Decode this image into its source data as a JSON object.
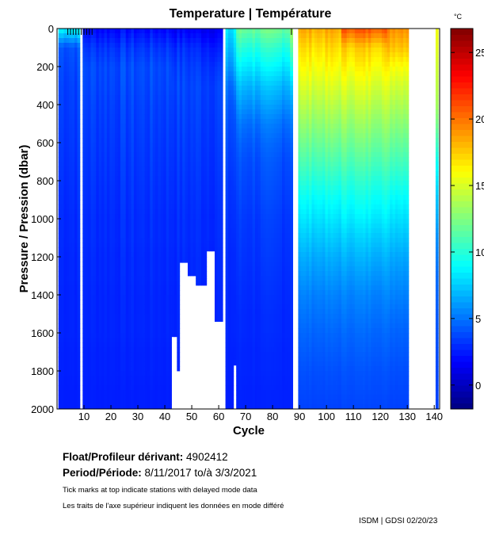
{
  "chart_data": {
    "type": "heatmap",
    "title": "Temperature | Température",
    "xlabel": "Cycle",
    "ylabel": "Pressure / Pression (dbar)",
    "xlim": [
      0,
      142
    ],
    "ylim": [
      2000,
      0
    ],
    "xticks": [
      10,
      20,
      30,
      40,
      50,
      60,
      70,
      80,
      90,
      100,
      110,
      120,
      130,
      140
    ],
    "yticks": [
      0,
      200,
      400,
      600,
      800,
      1000,
      1200,
      1400,
      1600,
      1800,
      2000
    ],
    "colorbar": {
      "label": "°C",
      "range": [
        -1.8,
        26.8
      ],
      "ticks": [
        0,
        5,
        10,
        15,
        20,
        25
      ],
      "colormap": "jet"
    },
    "pressure_levels": [
      0,
      100,
      200,
      300,
      400,
      500,
      600,
      700,
      800,
      900,
      1000,
      1100,
      1200,
      1300,
      1400,
      1500,
      1600,
      1700,
      1800,
      1900,
      2000
    ],
    "segments": [
      {
        "cycles": [
          1,
          8
        ],
        "max_pressure": 2000,
        "temps": [
          9.0,
          4.2,
          3.9,
          3.7,
          3.6,
          3.5,
          3.4,
          3.3,
          3.2,
          3.1,
          3.0,
          3.0,
          2.9,
          2.9,
          2.8,
          2.8,
          2.8,
          2.7,
          2.7,
          2.6,
          2.6
        ]
      },
      {
        "cycles": [
          10,
          42
        ],
        "max_pressure": 2000,
        "temps": [
          2.0,
          3.3,
          3.9,
          3.8,
          3.6,
          3.5,
          3.4,
          3.3,
          3.2,
          3.1,
          3.0,
          3.0,
          2.9,
          2.9,
          2.8,
          2.8,
          2.8,
          2.7,
          2.7,
          2.6,
          2.6
        ]
      },
      {
        "cycles": [
          43,
          44
        ],
        "max_pressure": 1620,
        "temps": [
          1.6,
          3.0,
          3.6,
          3.8,
          3.6,
          3.5,
          3.4,
          3.3,
          3.2,
          3.1,
          3.0,
          3.0,
          2.9,
          2.9,
          2.8,
          2.8,
          2.8,
          2.7,
          2.7,
          2.6,
          2.6
        ]
      },
      {
        "cycles": [
          45,
          45
        ],
        "max_pressure": 1800,
        "temps": [
          1.6,
          3.0,
          3.6,
          3.8,
          3.6,
          3.5,
          3.4,
          3.3,
          3.2,
          3.1,
          3.0,
          3.0,
          2.9,
          2.9,
          2.8,
          2.8,
          2.8,
          2.7,
          2.7,
          2.6,
          2.6
        ]
      },
      {
        "cycles": [
          46,
          48
        ],
        "max_pressure": 1230,
        "temps": [
          1.6,
          3.0,
          3.5,
          3.7,
          3.6,
          3.5,
          3.4,
          3.3,
          3.2,
          3.1,
          3.0,
          3.0,
          2.9,
          2.9,
          2.8,
          2.8,
          2.8,
          2.7,
          2.7,
          2.6,
          2.6
        ]
      },
      {
        "cycles": [
          49,
          51
        ],
        "max_pressure": 1300,
        "temps": [
          1.6,
          3.0,
          3.5,
          3.7,
          3.6,
          3.5,
          3.4,
          3.3,
          3.2,
          3.1,
          3.0,
          3.0,
          2.9,
          2.9,
          2.8,
          2.8,
          2.8,
          2.7,
          2.7,
          2.6,
          2.6
        ]
      },
      {
        "cycles": [
          52,
          55
        ],
        "max_pressure": 1350,
        "temps": [
          1.5,
          2.8,
          3.4,
          3.7,
          3.6,
          3.5,
          3.4,
          3.3,
          3.2,
          3.1,
          3.0,
          3.0,
          2.9,
          2.9,
          2.8,
          2.8,
          2.8,
          2.7,
          2.7,
          2.6,
          2.6
        ]
      },
      {
        "cycles": [
          56,
          58
        ],
        "max_pressure": 1170,
        "temps": [
          1.5,
          2.8,
          3.4,
          3.7,
          3.6,
          3.5,
          3.4,
          3.3,
          3.2,
          3.1,
          3.0,
          3.0,
          2.9,
          2.9,
          2.8,
          2.8,
          2.8,
          2.7,
          2.7,
          2.6,
          2.6
        ]
      },
      {
        "cycles": [
          59,
          61
        ],
        "max_pressure": 1540,
        "temps": [
          1.5,
          2.5,
          3.3,
          3.7,
          3.6,
          3.5,
          3.4,
          3.3,
          3.2,
          3.1,
          3.0,
          3.0,
          2.9,
          2.9,
          2.8,
          2.8,
          2.8,
          2.7,
          2.7,
          2.6,
          2.6
        ]
      },
      {
        "cycles": [
          63,
          65
        ],
        "max_pressure": 2000,
        "temps": [
          8.0,
          7.0,
          6.0,
          4.8,
          4.2,
          3.9,
          3.7,
          3.5,
          3.3,
          3.2,
          3.1,
          3.0,
          2.9,
          2.9,
          2.8,
          2.8,
          2.8,
          2.7,
          2.7,
          2.6,
          2.6
        ]
      },
      {
        "cycles": [
          66,
          66
        ],
        "max_pressure": 1770,
        "temps": [
          9.0,
          8.0,
          7.0,
          5.5,
          4.5,
          4.0,
          3.8,
          3.6,
          3.4,
          3.2,
          3.1,
          3.0,
          2.9,
          2.9,
          2.8,
          2.8,
          2.8,
          2.7,
          2.7,
          2.6,
          2.6
        ]
      },
      {
        "cycles": [
          67,
          86
        ],
        "max_pressure": 2000,
        "temps": [
          12.0,
          10.0,
          8.5,
          7.0,
          6.0,
          5.0,
          4.4,
          4.0,
          3.8,
          3.6,
          3.4,
          3.3,
          3.2,
          3.1,
          3.0,
          2.9,
          2.9,
          2.8,
          2.8,
          2.7,
          2.7
        ]
      },
      {
        "cycles": [
          87,
          87
        ],
        "max_pressure": 2000,
        "temps": [
          14.0,
          12.0,
          10.0,
          8.0,
          6.5,
          5.5,
          4.8,
          4.3,
          4.0,
          3.8,
          3.6,
          3.5,
          3.4,
          3.3,
          3.2,
          3.1,
          3.0,
          2.9,
          2.9,
          2.8,
          2.8
        ]
      },
      {
        "cycles": [
          90,
          105
        ],
        "max_pressure": 2000,
        "temps": [
          18.5,
          17.0,
          16.0,
          15.0,
          14.0,
          13.0,
          12.0,
          11.0,
          10.0,
          9.0,
          8.2,
          7.4,
          6.6,
          6.0,
          5.4,
          5.0,
          4.6,
          4.3,
          4.0,
          3.8,
          3.6
        ]
      },
      {
        "cycles": [
          106,
          122
        ],
        "max_pressure": 2000,
        "temps": [
          21.0,
          17.5,
          16.3,
          15.2,
          14.2,
          13.2,
          12.2,
          11.2,
          10.2,
          9.3,
          8.5,
          7.6,
          6.8,
          6.1,
          5.5,
          5.1,
          4.7,
          4.4,
          4.1,
          3.9,
          3.7
        ]
      },
      {
        "cycles": [
          123,
          130
        ],
        "max_pressure": 2000,
        "temps": [
          19.5,
          18.0,
          16.2,
          15.0,
          14.0,
          13.0,
          12.0,
          11.0,
          10.0,
          9.0,
          8.2,
          7.4,
          6.6,
          6.0,
          5.5,
          5.0,
          4.6,
          4.3,
          4.0,
          3.8,
          3.6
        ]
      },
      {
        "cycles": [
          141,
          141
        ],
        "max_pressure": 2000,
        "temps": [
          16.0,
          15.6,
          15.0,
          14.5,
          13.8,
          12.5,
          11.0,
          9.5,
          8.5,
          7.5,
          6.8,
          6.0,
          5.5,
          5.0,
          4.7,
          4.4,
          4.2,
          4.0,
          3.8,
          3.7,
          3.6
        ]
      }
    ],
    "delayed_mode_ticks": [
      4,
      5,
      6,
      7,
      8,
      9,
      10,
      11,
      12,
      13,
      87
    ]
  },
  "info": {
    "float_label": "Float/Profileur dérivant:",
    "float_id": "4902412",
    "period_label": "Period/Période:",
    "period_start": "8/11/2017",
    "period_sep": "to/à",
    "period_end": "3/3/2021",
    "note_en": "Tick marks at top indicate stations with delayed mode data",
    "note_fr": "Les traits de l'axe supérieur indiquent les données en mode différé",
    "credit": "ISDM | GDSI  02/20/23"
  }
}
